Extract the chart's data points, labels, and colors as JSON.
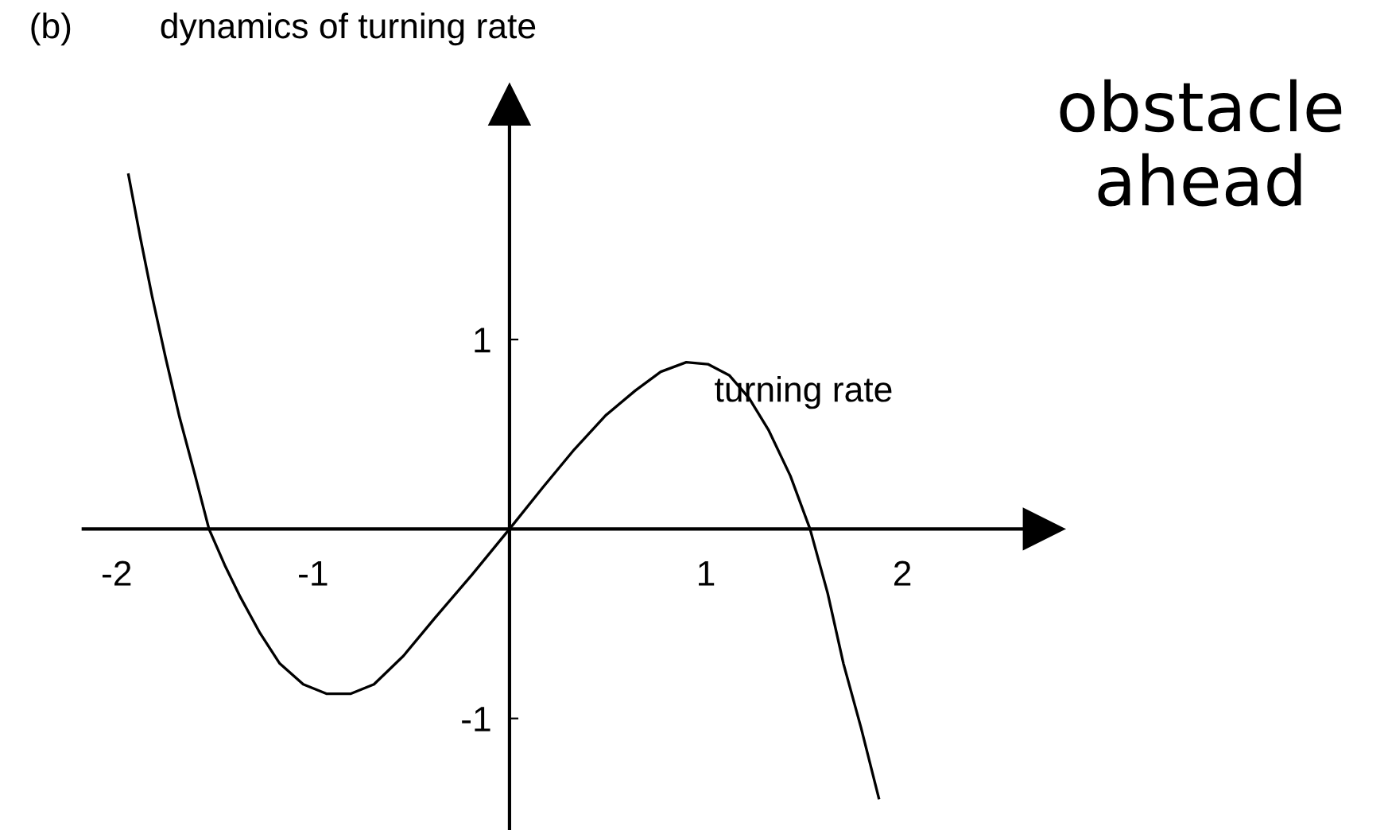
{
  "chart_data": {
    "type": "line",
    "title": "dynamics of turning rate",
    "xlabel": "turning rate",
    "annotations": [
      "(b)",
      "obstacle ahead"
    ],
    "x": [
      -1.94,
      -1.88,
      -1.82,
      -1.75,
      -1.68,
      -1.6,
      -1.53,
      -1.45,
      -1.37,
      -1.27,
      -1.17,
      -1.05,
      -0.93,
      -0.81,
      -0.69,
      -0.54,
      -0.38,
      -0.19,
      0,
      0.17,
      0.33,
      0.49,
      0.64,
      0.77,
      0.9,
      1.01,
      1.12,
      1.22,
      1.32,
      1.43,
      1.53,
      1.62,
      1.7,
      1.79,
      1.88
    ],
    "series": [
      {
        "color": "#000000",
        "values": [
          1.87,
          1.54,
          1.23,
          0.9,
          0.59,
          0.28,
          0,
          -0.19,
          -0.36,
          -0.55,
          -0.71,
          -0.82,
          -0.87,
          -0.87,
          -0.82,
          -0.67,
          -0.47,
          -0.24,
          0,
          0.22,
          0.42,
          0.6,
          0.73,
          0.83,
          0.88,
          0.87,
          0.81,
          0.69,
          0.52,
          0.28,
          0,
          -0.34,
          -0.71,
          -1.05,
          -1.42
        ]
      }
    ],
    "xlim": [
      -2.17,
      2.72
    ],
    "ylim": [
      -1.58,
      2.24
    ],
    "xticks": [
      -2,
      -1,
      1,
      2
    ],
    "yticks": [
      -1,
      1
    ],
    "grid": false,
    "legend": false,
    "marker": "none",
    "line_style": "solid"
  }
}
